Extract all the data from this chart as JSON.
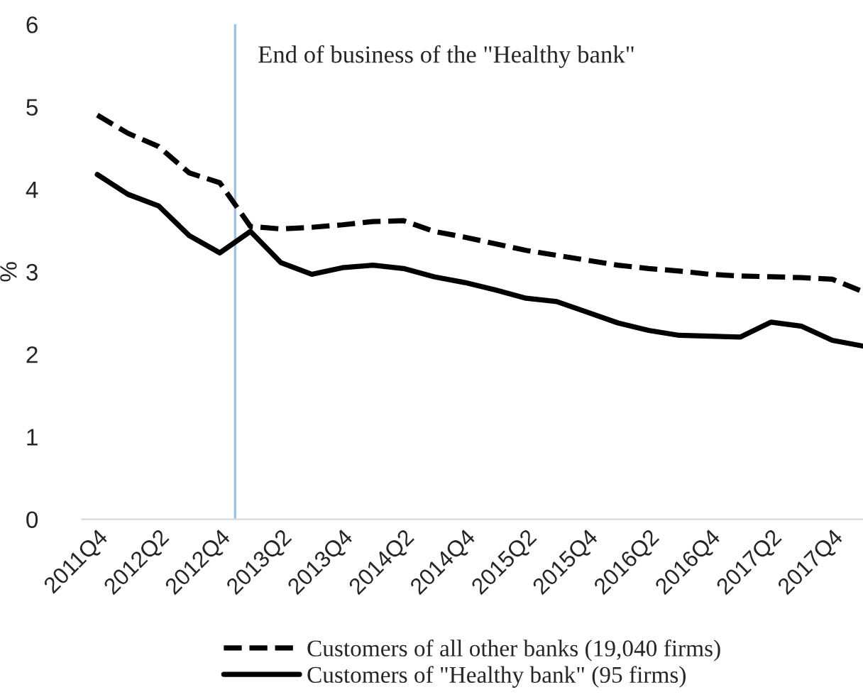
{
  "chart_data": {
    "type": "line",
    "ylabel": "%",
    "categories": [
      "2011Q4",
      null,
      "2012Q2",
      null,
      "2012Q4",
      null,
      "2013Q2",
      null,
      "2013Q4",
      null,
      "2014Q2",
      null,
      "2014Q4",
      null,
      "2015Q2",
      null,
      "2015Q4",
      null,
      "2016Q2",
      null,
      "2016Q4",
      null,
      "2017Q2",
      null,
      "2017Q4",
      null
    ],
    "series": [
      {
        "name": "Customers of all other banks (19,040 firms)",
        "color": "#000000",
        "line_style": "dashed",
        "values": [
          4.9,
          4.68,
          4.52,
          4.2,
          4.08,
          3.55,
          3.52,
          3.54,
          3.57,
          3.61,
          3.62,
          3.49,
          3.42,
          3.34,
          3.26,
          3.2,
          3.14,
          3.08,
          3.04,
          3.01,
          2.97,
          2.95,
          2.94,
          2.93,
          2.91,
          2.76
        ]
      },
      {
        "name": "Customers of \"Healthy bank\" (95 firms)",
        "color": "#000000",
        "line_style": "solid",
        "values": [
          4.18,
          3.94,
          3.8,
          3.44,
          3.23,
          3.49,
          3.11,
          2.97,
          3.05,
          3.08,
          3.04,
          2.94,
          2.87,
          2.78,
          2.68,
          2.64,
          2.51,
          2.38,
          2.29,
          2.23,
          2.22,
          2.21,
          2.39,
          2.34,
          2.17,
          2.1
        ]
      }
    ],
    "ylim": [
      0,
      6
    ],
    "yticks": [
      0,
      1,
      2,
      3,
      4,
      5,
      6
    ],
    "grid": false,
    "legend": "bottom",
    "marker": "none",
    "annotations": [
      "End of business of the \"Healthy bank\""
    ]
  }
}
